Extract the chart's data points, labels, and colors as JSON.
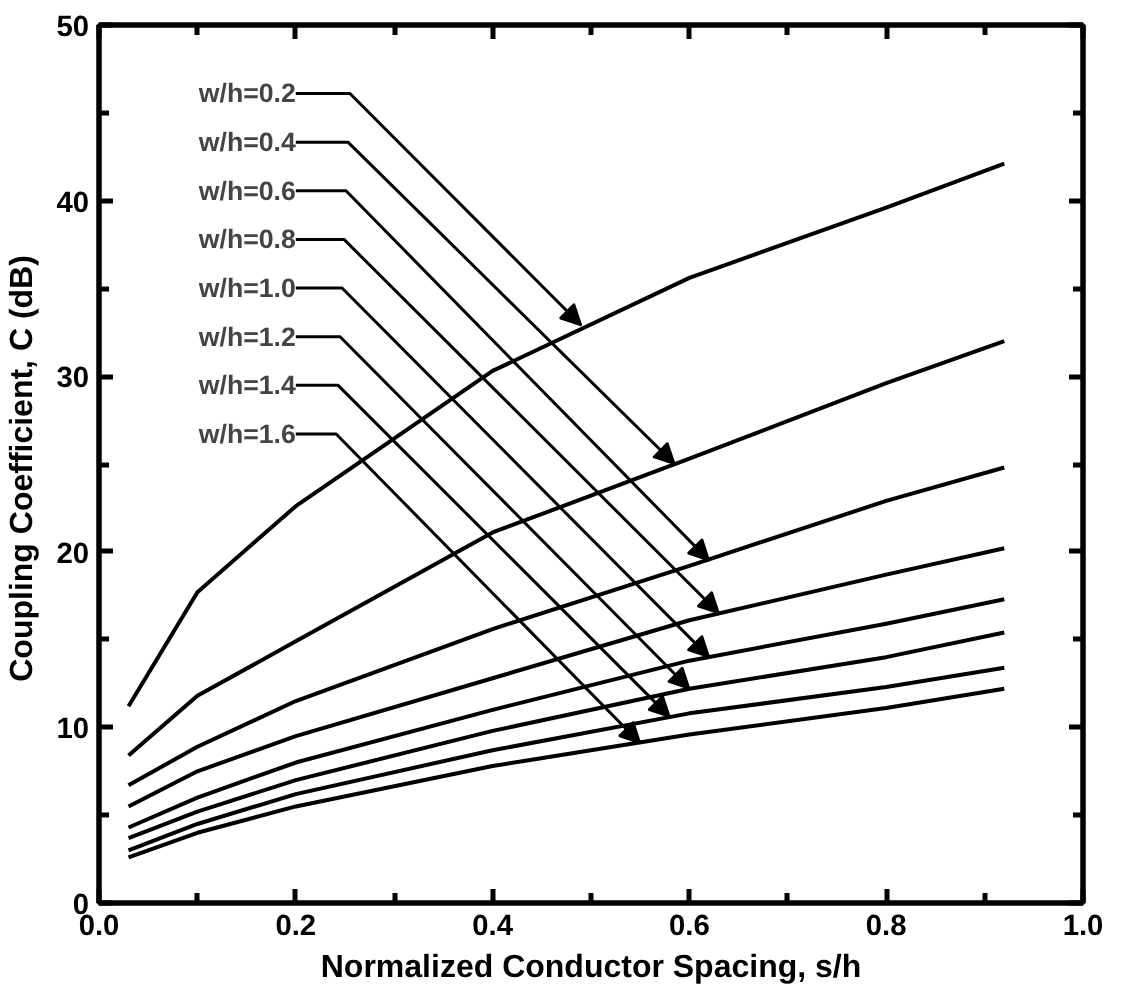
{
  "chart_data": {
    "type": "line",
    "xlabel": "Normalized Conductor Spacing, s/h",
    "ylabel": "Coupling Coefficient,  C (dB)",
    "x": [
      0.03,
      0.1,
      0.2,
      0.4,
      0.6,
      0.8,
      0.92
    ],
    "series": [
      {
        "color": "#000000",
        "values": [
          11.2,
          17.7,
          22.6,
          30.3,
          35.6,
          39.6,
          42.1
        ]
      },
      {
        "color": "#000000",
        "values": [
          8.4,
          11.8,
          14.9,
          21.1,
          25.3,
          29.6,
          32.0
        ]
      },
      {
        "color": "#000000",
        "values": [
          6.7,
          8.9,
          11.5,
          15.6,
          19.2,
          22.9,
          24.8
        ]
      },
      {
        "color": "#000000",
        "values": [
          5.5,
          7.5,
          9.5,
          12.8,
          16.1,
          18.7,
          20.2
        ]
      },
      {
        "color": "#000000",
        "values": [
          4.3,
          6.0,
          8.0,
          11.0,
          13.8,
          15.9,
          17.3
        ]
      },
      {
        "color": "#000000",
        "values": [
          3.7,
          5.2,
          7.0,
          9.8,
          12.2,
          14.0,
          15.4
        ]
      },
      {
        "color": "#000000",
        "values": [
          3.0,
          4.5,
          6.2,
          8.7,
          10.8,
          12.3,
          13.4
        ]
      },
      {
        "color": "#000000",
        "values": [
          2.6,
          4.0,
          5.5,
          7.8,
          9.6,
          11.1,
          12.2
        ]
      }
    ],
    "annotations": [
      {
        "text": "w/h=0.2",
        "x": 0.49,
        "y": 32.9
      },
      {
        "text": "w/h=0.4",
        "x": 0.585,
        "y": 25.0
      },
      {
        "text": "w/h=0.6",
        "x": 0.62,
        "y": 19.5
      },
      {
        "text": "w/h=0.8",
        "x": 0.63,
        "y": 16.5
      },
      {
        "text": "w/h=1.0",
        "x": 0.62,
        "y": 14.0
      },
      {
        "text": "w/h=1.2",
        "x": 0.6,
        "y": 12.2
      },
      {
        "text": "w/h=1.4",
        "x": 0.58,
        "y": 10.6
      },
      {
        "text": "w/h=1.6",
        "x": 0.55,
        "y": 9.1
      }
    ],
    "xlim": [
      0,
      1.0
    ],
    "ylim": [
      0,
      50
    ],
    "xticks": [
      {
        "value": 0,
        "label": "0.0"
      },
      0.2,
      0.4,
      0.6,
      0.8,
      {
        "value": 1.0,
        "label": "1.0"
      }
    ],
    "yticks": [
      0,
      10,
      20,
      30,
      40,
      50
    ],
    "grid": false,
    "marker": "none",
    "line_style": "solid"
  }
}
